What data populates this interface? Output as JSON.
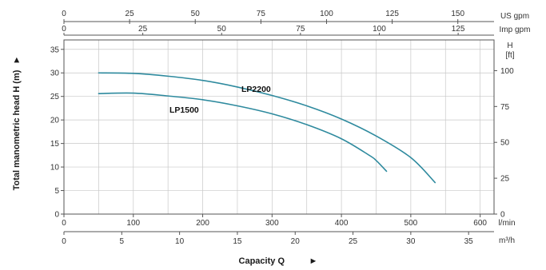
{
  "chart_data": {
    "type": "line",
    "xlabel": "Capacity Q",
    "ylabel": "Total manometric head H (m)",
    "arrow_glyph": "►",
    "x_unit": "l/min",
    "x_range": [
      0,
      620
    ],
    "x_ticks": [
      0,
      100,
      200,
      300,
      400,
      500,
      600
    ],
    "y_unit": "m",
    "y_range": [
      0,
      37
    ],
    "y_ticks": [
      0,
      5,
      10,
      15,
      20,
      25,
      30,
      35
    ],
    "grid": true,
    "secondary_axes": {
      "top_usgpm": {
        "unit": "US gpm",
        "ticks": [
          0,
          25,
          50,
          75,
          100,
          125,
          150
        ],
        "tick_labels": [
          "0",
          "25",
          "50",
          "75",
          "100",
          "125",
          "150"
        ]
      },
      "top_impgpm": {
        "unit": "Imp gpm",
        "ticks": [
          0,
          25,
          50,
          75,
          100,
          125
        ],
        "tick_labels": [
          "0",
          "25",
          "50",
          "75",
          "100",
          "125"
        ]
      },
      "right_ft": {
        "unit_line1": "H",
        "unit_line2": "[ft]",
        "ticks": [
          0,
          25,
          50,
          75,
          100
        ],
        "tick_labels": [
          "0",
          "25",
          "50",
          "75",
          "100"
        ]
      },
      "bottom_m3h": {
        "unit": "m³/h",
        "ticks": [
          0,
          5,
          10,
          15,
          20,
          25,
          30,
          35
        ],
        "tick_labels": [
          "0",
          "5",
          "10",
          "15",
          "20",
          "25",
          "30",
          "35"
        ]
      }
    },
    "series": [
      {
        "name": "LP2200",
        "color": "#2e8a9e",
        "points": [
          [
            50,
            30
          ],
          [
            100,
            29.9
          ],
          [
            150,
            29.3
          ],
          [
            200,
            28.4
          ],
          [
            250,
            27.0
          ],
          [
            300,
            25.2
          ],
          [
            350,
            23.0
          ],
          [
            400,
            20.2
          ],
          [
            450,
            16.6
          ],
          [
            500,
            12.0
          ],
          [
            535,
            6.7
          ]
        ]
      },
      {
        "name": "LP1500",
        "color": "#2e8a9e",
        "points": [
          [
            50,
            25.6
          ],
          [
            100,
            25.7
          ],
          [
            150,
            25.1
          ],
          [
            200,
            24.3
          ],
          [
            250,
            23.0
          ],
          [
            300,
            21.3
          ],
          [
            350,
            19.0
          ],
          [
            400,
            16.0
          ],
          [
            440,
            12.5
          ],
          [
            450,
            11.4
          ],
          [
            465,
            9.1
          ]
        ]
      }
    ]
  }
}
